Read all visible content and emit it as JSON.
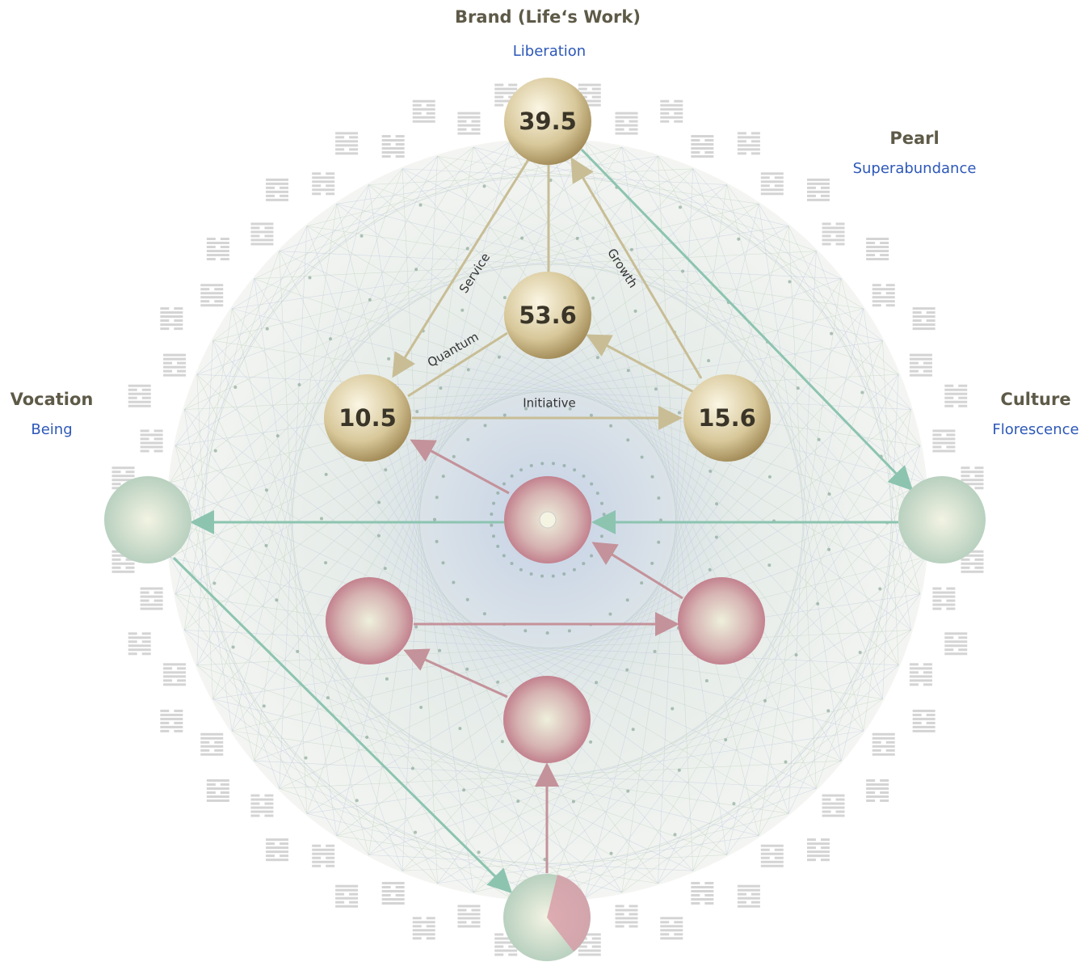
{
  "header": {
    "title": "Brand (Life‘s Work)",
    "subtitle": "Liberation"
  },
  "corners": [
    {
      "title": "Pearl",
      "subtitle": "Superabundance"
    },
    {
      "title": "Vocation",
      "subtitle": "Being"
    },
    {
      "title": "Culture",
      "subtitle": "Florescence"
    }
  ],
  "nodes": [
    {
      "label": 39.5
    },
    {
      "label": 53.6
    },
    {
      "label": 10.5
    },
    {
      "label": 15.6
    }
  ],
  "edges": [
    {
      "label": "Service"
    },
    {
      "label": "Growth"
    },
    {
      "label": "Quantum"
    },
    {
      "label": "Initiative"
    }
  ]
}
